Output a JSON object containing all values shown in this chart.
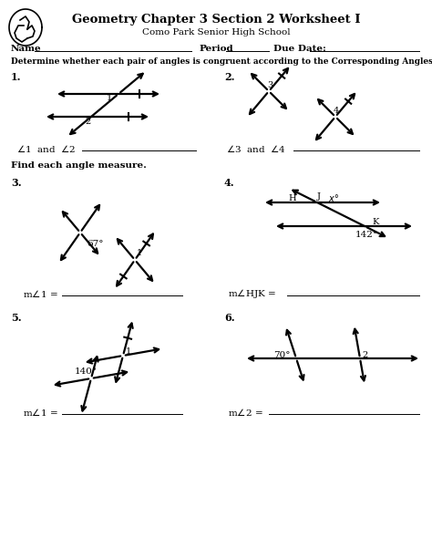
{
  "title": "Geometry Chapter 3 Section 2 Worksheet I",
  "subtitle": "Como Park Senior High School",
  "instruction1": "Determine whether each pair of angles is congruent according to the Corresponding Angles Postulate.",
  "instruction2": "Find each angle measure.",
  "bg_color": "#ffffff",
  "text_color": "#000000",
  "lw": 1.6,
  "ms": 9
}
